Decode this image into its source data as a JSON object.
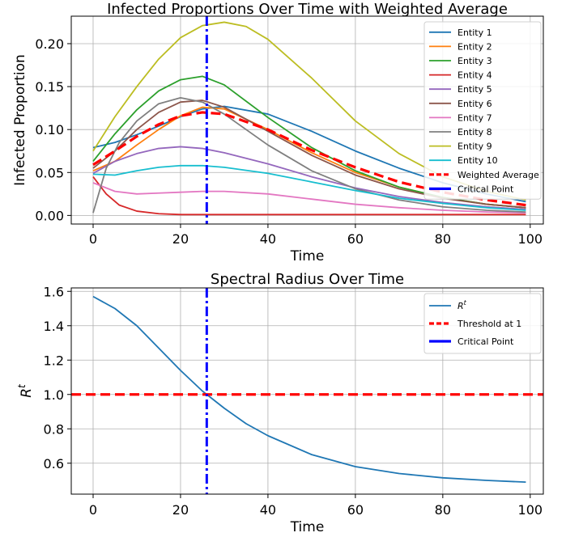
{
  "chart_data": [
    {
      "type": "line",
      "title": "Infected Proportions Over Time with Weighted Average",
      "xlabel": "Time",
      "ylabel": "Infected Proportion",
      "xlim": [
        -5,
        103
      ],
      "ylim": [
        -0.01,
        0.232
      ],
      "xticks": [
        0,
        20,
        40,
        60,
        80,
        100
      ],
      "yticks": [
        0.0,
        0.05,
        0.1,
        0.15,
        0.2
      ],
      "ytick_labels": [
        "0.00",
        "0.05",
        "0.10",
        "0.15",
        "0.20"
      ],
      "xtick_labels": [
        "0",
        "20",
        "40",
        "60",
        "80",
        "100"
      ],
      "grid": true,
      "legend_position": "top-right",
      "series": [
        {
          "name": "Entity 1",
          "color": "#1f77b4",
          "style": "solid",
          "x": [
            0,
            5,
            10,
            15,
            20,
            25,
            30,
            40,
            50,
            60,
            70,
            80,
            90,
            99
          ],
          "y": [
            0.079,
            0.085,
            0.094,
            0.104,
            0.115,
            0.124,
            0.127,
            0.118,
            0.098,
            0.075,
            0.055,
            0.038,
            0.025,
            0.016
          ]
        },
        {
          "name": "Entity 2",
          "color": "#ff7f0e",
          "style": "solid",
          "x": [
            0,
            5,
            10,
            15,
            20,
            25,
            30,
            40,
            50,
            60,
            70,
            80,
            90,
            99
          ],
          "y": [
            0.052,
            0.063,
            0.082,
            0.1,
            0.116,
            0.126,
            0.124,
            0.1,
            0.073,
            0.05,
            0.033,
            0.021,
            0.013,
            0.009
          ]
        },
        {
          "name": "Entity 3",
          "color": "#2ca02c",
          "style": "solid",
          "x": [
            0,
            5,
            10,
            15,
            20,
            25,
            30,
            40,
            50,
            60,
            70,
            80,
            90,
            99
          ],
          "y": [
            0.063,
            0.095,
            0.123,
            0.145,
            0.158,
            0.162,
            0.152,
            0.114,
            0.079,
            0.052,
            0.033,
            0.021,
            0.013,
            0.009
          ]
        },
        {
          "name": "Entity 4",
          "color": "#d62728",
          "style": "solid",
          "x": [
            0,
            3,
            6,
            10,
            15,
            20,
            30,
            50,
            70,
            99
          ],
          "y": [
            0.045,
            0.025,
            0.012,
            0.005,
            0.002,
            0.001,
            0.001,
            0.001,
            0.001,
            0.001
          ]
        },
        {
          "name": "Entity 5",
          "color": "#9467bd",
          "style": "solid",
          "x": [
            0,
            5,
            10,
            15,
            20,
            25,
            30,
            40,
            50,
            60,
            70,
            80,
            90,
            99
          ],
          "y": [
            0.049,
            0.063,
            0.072,
            0.078,
            0.08,
            0.078,
            0.073,
            0.06,
            0.045,
            0.032,
            0.022,
            0.015,
            0.01,
            0.007
          ]
        },
        {
          "name": "Entity 6",
          "color": "#8c564b",
          "style": "solid",
          "x": [
            0,
            5,
            10,
            15,
            20,
            25,
            30,
            40,
            50,
            60,
            70,
            80,
            90,
            99
          ],
          "y": [
            0.055,
            0.075,
            0.1,
            0.12,
            0.132,
            0.134,
            0.126,
            0.098,
            0.07,
            0.047,
            0.031,
            0.02,
            0.013,
            0.009
          ]
        },
        {
          "name": "Entity 7",
          "color": "#e377c2",
          "style": "solid",
          "x": [
            0,
            5,
            10,
            15,
            20,
            25,
            30,
            40,
            50,
            60,
            70,
            80,
            90,
            99
          ],
          "y": [
            0.038,
            0.028,
            0.025,
            0.026,
            0.027,
            0.028,
            0.028,
            0.025,
            0.019,
            0.013,
            0.009,
            0.006,
            0.004,
            0.003
          ]
        },
        {
          "name": "Entity 8",
          "color": "#7f7f7f",
          "style": "solid",
          "x": [
            0,
            3,
            6,
            10,
            15,
            20,
            25,
            30,
            40,
            50,
            60,
            70,
            80,
            90,
            99
          ],
          "y": [
            0.003,
            0.055,
            0.085,
            0.11,
            0.13,
            0.137,
            0.132,
            0.118,
            0.082,
            0.052,
            0.031,
            0.018,
            0.01,
            0.006,
            0.004
          ]
        },
        {
          "name": "Entity 9",
          "color": "#bcbd22",
          "style": "solid",
          "x": [
            0,
            5,
            10,
            15,
            20,
            25,
            30,
            35,
            40,
            50,
            60,
            70,
            80,
            90,
            99
          ],
          "y": [
            0.075,
            0.115,
            0.15,
            0.182,
            0.207,
            0.221,
            0.225,
            0.22,
            0.205,
            0.16,
            0.11,
            0.072,
            0.045,
            0.028,
            0.018
          ]
        },
        {
          "name": "Entity 10",
          "color": "#17becf",
          "style": "solid",
          "x": [
            0,
            5,
            10,
            15,
            20,
            25,
            30,
            40,
            50,
            60,
            70,
            80,
            90,
            99
          ],
          "y": [
            0.048,
            0.047,
            0.052,
            0.056,
            0.058,
            0.058,
            0.056,
            0.049,
            0.039,
            0.029,
            0.02,
            0.014,
            0.009,
            0.006
          ]
        },
        {
          "name": "Weighted Average",
          "color": "#ff0000",
          "style": "dashed",
          "x": [
            0,
            5,
            10,
            15,
            20,
            25,
            30,
            40,
            50,
            60,
            70,
            80,
            90,
            99
          ],
          "y": [
            0.059,
            0.075,
            0.092,
            0.106,
            0.116,
            0.12,
            0.118,
            0.1,
            0.076,
            0.056,
            0.039,
            0.027,
            0.018,
            0.012
          ]
        }
      ],
      "vlines": [
        {
          "name": "Critical Point",
          "x": 26,
          "color": "#0000ff",
          "style": "dashdot"
        }
      ]
    },
    {
      "type": "line",
      "title": "Spectral Radius Over Time",
      "xlabel": "Time",
      "ylabel": "R",
      "ylabel_sup": "t",
      "xlim": [
        -5,
        103
      ],
      "ylim": [
        0.42,
        1.62
      ],
      "xticks": [
        0,
        20,
        40,
        60,
        80,
        100
      ],
      "yticks": [
        0.6,
        0.8,
        1.0,
        1.2,
        1.4,
        1.6
      ],
      "ytick_labels": [
        "0.6",
        "0.8",
        "1.0",
        "1.2",
        "1.4",
        "1.6"
      ],
      "xtick_labels": [
        "0",
        "20",
        "40",
        "60",
        "80",
        "100"
      ],
      "grid": true,
      "legend_position": "top-right",
      "series": [
        {
          "name": "R",
          "name_sup": "t",
          "color": "#1f77b4",
          "style": "solid",
          "x": [
            0,
            5,
            10,
            15,
            20,
            25,
            30,
            35,
            40,
            50,
            60,
            70,
            80,
            90,
            99
          ],
          "y": [
            1.57,
            1.5,
            1.4,
            1.27,
            1.14,
            1.02,
            0.92,
            0.83,
            0.76,
            0.65,
            0.58,
            0.54,
            0.515,
            0.5,
            0.49
          ]
        }
      ],
      "hlines": [
        {
          "name": "Threshold at 1",
          "y": 1.0,
          "color": "#ff0000",
          "style": "dashed"
        }
      ],
      "vlines": [
        {
          "name": "Critical Point",
          "x": 26,
          "color": "#0000ff",
          "style": "dashdot"
        }
      ]
    }
  ]
}
